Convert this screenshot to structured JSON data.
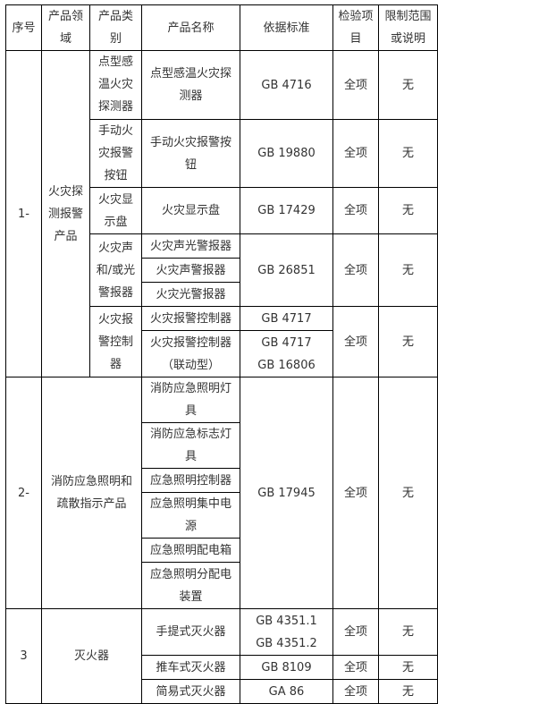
{
  "headers": [
    "序号",
    "产品领域",
    "产品类别",
    "产品名称",
    "依据标准",
    "检验项目",
    "限制范围或说明"
  ],
  "sections": [
    {
      "no": "1-",
      "field": "火灾探测报警产品",
      "categories": [
        {
          "name": "点型感温火灾探测器",
          "products": [
            {
              "name": "点型感温火灾探测器",
              "standards": [
                "GB 4716"
              ]
            }
          ],
          "scope": "全项",
          "limit": "无"
        },
        {
          "name": "手动火灾报警按钮",
          "products": [
            {
              "name": "手动火灾报警按钮",
              "standards": [
                "GB 19880"
              ]
            }
          ],
          "scope": "全项",
          "limit": "无"
        },
        {
          "name": "火灾显示盘",
          "products": [
            {
              "name": "火灾显示盘",
              "standards": [
                "GB 17429"
              ]
            }
          ],
          "scope": "全项",
          "limit": "无"
        },
        {
          "name": "火灾声和/或光警报器",
          "products": [
            {
              "name": "火灾声光警报器"
            },
            {
              "name": "火灾声警报器"
            },
            {
              "name": "火灾光警报器"
            }
          ],
          "standards": [
            "GB 26851"
          ],
          "scope": "全项",
          "limit": "无"
        },
        {
          "name": "火灾报警控制器",
          "products": [
            {
              "name": "火灾报警控制器",
              "standards": [
                "GB 4717"
              ]
            },
            {
              "name": "火灾报警控制器（联动型）",
              "standards": [
                "GB 4717",
                "GB 16806"
              ]
            }
          ],
          "scope": "全项",
          "limit": "无"
        }
      ]
    },
    {
      "no": "2-",
      "field": "消防应急照明和疏散指示产品",
      "products": [
        "消防应急照明灯具",
        "消防应急标志灯具",
        "应急照明控制器",
        "应急照明集中电源",
        "应急照明配电箱",
        "应急照明分配电装置"
      ],
      "standards": [
        "GB 17945"
      ],
      "scope": "全项",
      "limit": "无"
    },
    {
      "no": "3",
      "field": "灭火器",
      "products": [
        {
          "name": "手提式灭火器",
          "standards": [
            "GB 4351.1",
            "GB 4351.2"
          ],
          "scope": "全项",
          "limit": "无"
        },
        {
          "name": "推车式灭火器",
          "standards": [
            "GB 8109"
          ],
          "scope": "全项",
          "limit": "无"
        },
        {
          "name": "简易式灭火器",
          "standards": [
            "GA 86"
          ],
          "scope": "全项",
          "limit": "无"
        }
      ]
    }
  ]
}
